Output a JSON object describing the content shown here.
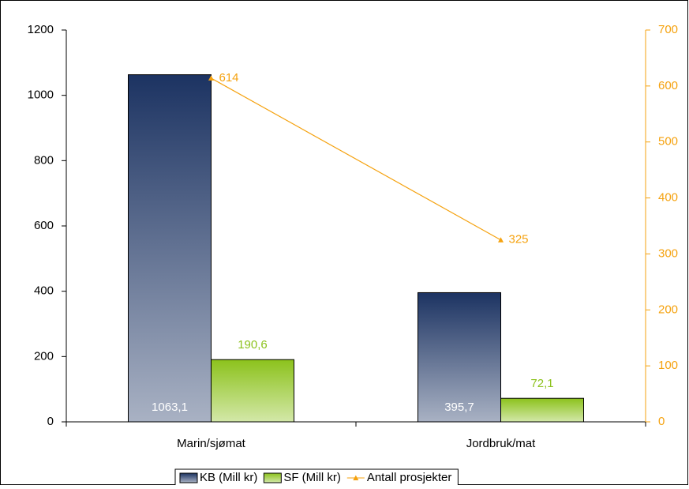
{
  "chart_data": {
    "type": "bar",
    "categories": [
      "Marin/sjømat",
      "Jordbruk/mat"
    ],
    "series": [
      {
        "name": "KB (Mill kr)",
        "color": "#1c3362",
        "values": [
          1063.1,
          395.7
        ],
        "value_labels": [
          "1063,1",
          "395,7"
        ]
      },
      {
        "name": "SF (Mill kr)",
        "color": "#8cc21c",
        "values": [
          190.6,
          72.1
        ],
        "value_labels": [
          "190,6",
          "72,1"
        ]
      },
      {
        "name": "Antall prosjekter",
        "color": "#f5a20f",
        "type": "line",
        "axis": "y2",
        "values": [
          614,
          325
        ]
      }
    ],
    "ylim": [
      0,
      1200
    ],
    "yticks": [
      0,
      200,
      400,
      600,
      800,
      1000,
      1200
    ],
    "y2lim": [
      0,
      700
    ],
    "y2ticks": [
      0,
      100,
      200,
      300,
      400,
      500,
      600,
      700
    ],
    "legend": "bottom"
  }
}
